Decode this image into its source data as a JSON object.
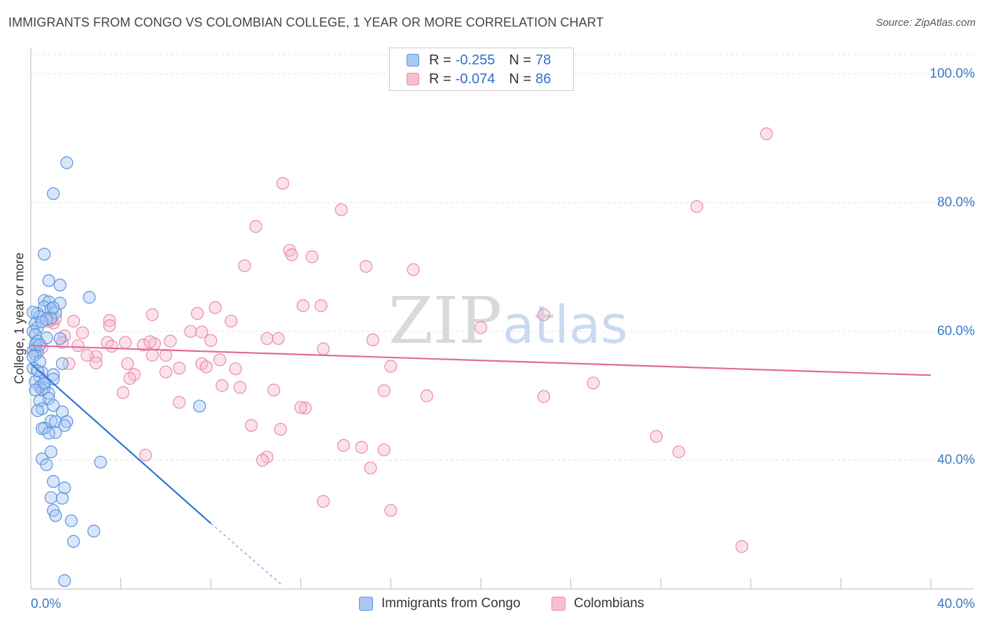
{
  "header": {
    "title": "IMMIGRANTS FROM CONGO VS COLOMBIAN COLLEGE, 1 YEAR OR MORE CORRELATION CHART",
    "source": "Source: ZipAtlas.com"
  },
  "watermark": {
    "zip": "ZIP",
    "atlas": "atlas"
  },
  "legend": {
    "rows": [
      {
        "r_label": "R = ",
        "r_value": "-0.255",
        "n_label": "N = ",
        "n_value": "78"
      },
      {
        "r_label": "R = ",
        "r_value": "-0.074",
        "n_label": "N = ",
        "n_value": "86"
      }
    ]
  },
  "chart_data": {
    "type": "scatter",
    "title": "IMMIGRANTS FROM CONGO VS COLOMBIAN COLLEGE, 1 YEAR OR MORE CORRELATION CHART",
    "xlabel": "",
    "ylabel": "College, 1 year or more",
    "xlim": [
      0,
      40
    ],
    "ylim": [
      20,
      103
    ],
    "x_tick_labels": [
      "0.0%",
      "40.0%"
    ],
    "y_ticks": [
      {
        "value": 100,
        "label": "100.0%"
      },
      {
        "value": 80,
        "label": "80.0%"
      },
      {
        "value": 60,
        "label": "60.0%"
      },
      {
        "value": 40,
        "label": "40.0%"
      }
    ],
    "grid": "horizontal dashed",
    "legend_position": "top-center",
    "colors": {
      "congo_fill": "#a9c8f2",
      "congo_stroke": "#5b93e0",
      "congo_line": "#2f74d6",
      "colombian_fill": "#f6bfd0",
      "colombian_stroke": "#e98aab",
      "colombian_line": "#e06b95"
    },
    "series": [
      {
        "name": "Immigrants from Congo",
        "trend": {
          "x0": 0,
          "y0": 55.0,
          "x1": 8.0,
          "y1": 30.2,
          "dash_x1": 11.2,
          "dash_y1": 20.5
        },
        "points": [
          [
            1.6,
            86.2
          ],
          [
            1.0,
            81.4
          ],
          [
            0.6,
            72.0
          ],
          [
            0.8,
            67.9
          ],
          [
            1.3,
            67.2
          ],
          [
            2.6,
            65.3
          ],
          [
            0.6,
            64.8
          ],
          [
            0.8,
            64.6
          ],
          [
            1.3,
            64.4
          ],
          [
            0.6,
            63.8
          ],
          [
            0.9,
            63.5
          ],
          [
            1.1,
            62.9
          ],
          [
            0.3,
            62.8
          ],
          [
            0.4,
            62.3
          ],
          [
            0.9,
            62.1
          ],
          [
            0.7,
            61.9
          ],
          [
            0.2,
            61.2
          ],
          [
            0.3,
            60.6
          ],
          [
            0.1,
            60.0
          ],
          [
            0.2,
            59.5
          ],
          [
            0.7,
            59.0
          ],
          [
            1.3,
            58.9
          ],
          [
            0.3,
            58.5
          ],
          [
            0.2,
            57.4
          ],
          [
            0.1,
            57.0
          ],
          [
            0.3,
            56.7
          ],
          [
            0.2,
            56.4
          ],
          [
            0.1,
            56.1
          ],
          [
            0.4,
            55.3
          ],
          [
            1.4,
            55.0
          ],
          [
            0.1,
            54.3
          ],
          [
            0.5,
            53.6
          ],
          [
            1.0,
            53.3
          ],
          [
            0.4,
            52.9
          ],
          [
            1.0,
            52.6
          ],
          [
            0.2,
            52.2
          ],
          [
            0.6,
            51.8
          ],
          [
            0.4,
            51.4
          ],
          [
            0.6,
            51.2
          ],
          [
            0.5,
            50.9
          ],
          [
            0.8,
            50.4
          ],
          [
            0.8,
            49.6
          ],
          [
            0.4,
            49.2
          ],
          [
            1.0,
            48.5
          ],
          [
            7.5,
            48.4
          ],
          [
            0.5,
            48.0
          ],
          [
            0.3,
            47.7
          ],
          [
            1.4,
            47.5
          ],
          [
            0.9,
            46.1
          ],
          [
            1.1,
            46.0
          ],
          [
            1.6,
            46.0
          ],
          [
            1.5,
            45.4
          ],
          [
            0.6,
            45.0
          ],
          [
            0.5,
            44.9
          ],
          [
            1.1,
            44.3
          ],
          [
            0.8,
            44.2
          ],
          [
            0.9,
            41.3
          ],
          [
            0.5,
            40.2
          ],
          [
            3.1,
            39.7
          ],
          [
            0.7,
            39.3
          ],
          [
            1.0,
            36.7
          ],
          [
            1.5,
            35.7
          ],
          [
            0.9,
            34.2
          ],
          [
            1.4,
            34.1
          ],
          [
            1.0,
            32.2
          ],
          [
            1.1,
            31.4
          ],
          [
            1.8,
            30.6
          ],
          [
            2.8,
            29.0
          ],
          [
            1.9,
            27.4
          ],
          [
            1.5,
            21.3
          ],
          [
            0.1,
            63.0
          ],
          [
            0.2,
            58.0
          ],
          [
            0.3,
            53.9
          ],
          [
            0.6,
            52.0
          ],
          [
            0.2,
            50.9
          ],
          [
            0.4,
            57.9
          ],
          [
            1.0,
            63.7
          ],
          [
            0.5,
            61.5
          ]
        ]
      },
      {
        "name": "Colombians",
        "trend": {
          "x0": 0,
          "y0": 57.8,
          "x1": 40,
          "y1": 53.2
        },
        "points": [
          [
            32.7,
            90.7
          ],
          [
            11.2,
            83.0
          ],
          [
            13.8,
            78.9
          ],
          [
            29.6,
            79.4
          ],
          [
            10.0,
            76.3
          ],
          [
            9.5,
            70.2
          ],
          [
            11.5,
            72.6
          ],
          [
            11.6,
            71.9
          ],
          [
            12.5,
            71.6
          ],
          [
            14.9,
            70.1
          ],
          [
            17.0,
            69.6
          ],
          [
            12.1,
            64.0
          ],
          [
            12.9,
            64.0
          ],
          [
            22.8,
            62.6
          ],
          [
            8.9,
            61.6
          ],
          [
            5.4,
            62.6
          ],
          [
            7.4,
            62.8
          ],
          [
            8.2,
            63.7
          ],
          [
            3.5,
            61.7
          ],
          [
            1.9,
            61.6
          ],
          [
            1.0,
            61.3
          ],
          [
            0.8,
            61.6
          ],
          [
            1.1,
            62.0
          ],
          [
            20.0,
            60.6
          ],
          [
            3.5,
            60.9
          ],
          [
            7.1,
            60.0
          ],
          [
            7.6,
            59.9
          ],
          [
            2.3,
            59.8
          ],
          [
            1.5,
            59.3
          ],
          [
            10.5,
            58.9
          ],
          [
            11.0,
            58.9
          ],
          [
            15.2,
            58.7
          ],
          [
            8.0,
            58.6
          ],
          [
            6.2,
            58.5
          ],
          [
            4.2,
            58.3
          ],
          [
            3.4,
            58.3
          ],
          [
            5.5,
            58.1
          ],
          [
            5.0,
            57.9
          ],
          [
            2.1,
            57.8
          ],
          [
            3.6,
            57.7
          ],
          [
            13.0,
            57.3
          ],
          [
            5.4,
            56.3
          ],
          [
            6.0,
            56.3
          ],
          [
            2.9,
            56.1
          ],
          [
            2.5,
            56.3
          ],
          [
            8.4,
            55.6
          ],
          [
            2.9,
            55.1
          ],
          [
            1.7,
            55.0
          ],
          [
            7.6,
            55.0
          ],
          [
            4.3,
            55.0
          ],
          [
            7.8,
            54.5
          ],
          [
            16.0,
            54.6
          ],
          [
            6.6,
            54.3
          ],
          [
            9.1,
            54.2
          ],
          [
            6.0,
            53.7
          ],
          [
            4.6,
            53.3
          ],
          [
            4.4,
            52.7
          ],
          [
            25.0,
            52.0
          ],
          [
            8.5,
            51.6
          ],
          [
            9.3,
            51.3
          ],
          [
            10.8,
            50.9
          ],
          [
            15.7,
            50.8
          ],
          [
            4.1,
            50.5
          ],
          [
            17.6,
            50.0
          ],
          [
            22.8,
            49.9
          ],
          [
            6.6,
            49.0
          ],
          [
            12.2,
            48.1
          ],
          [
            12.0,
            48.2
          ],
          [
            9.8,
            45.4
          ],
          [
            11.1,
            44.8
          ],
          [
            27.8,
            43.7
          ],
          [
            13.9,
            42.3
          ],
          [
            14.7,
            42.0
          ],
          [
            15.7,
            41.6
          ],
          [
            28.8,
            41.3
          ],
          [
            5.1,
            40.8
          ],
          [
            10.5,
            40.5
          ],
          [
            10.3,
            40.0
          ],
          [
            15.1,
            38.8
          ],
          [
            13.0,
            33.6
          ],
          [
            16.0,
            32.2
          ],
          [
            31.6,
            26.6
          ],
          [
            0.5,
            57.5
          ],
          [
            1.4,
            58.3
          ],
          [
            0.9,
            61.8
          ],
          [
            5.3,
            58.4
          ]
        ]
      }
    ]
  }
}
